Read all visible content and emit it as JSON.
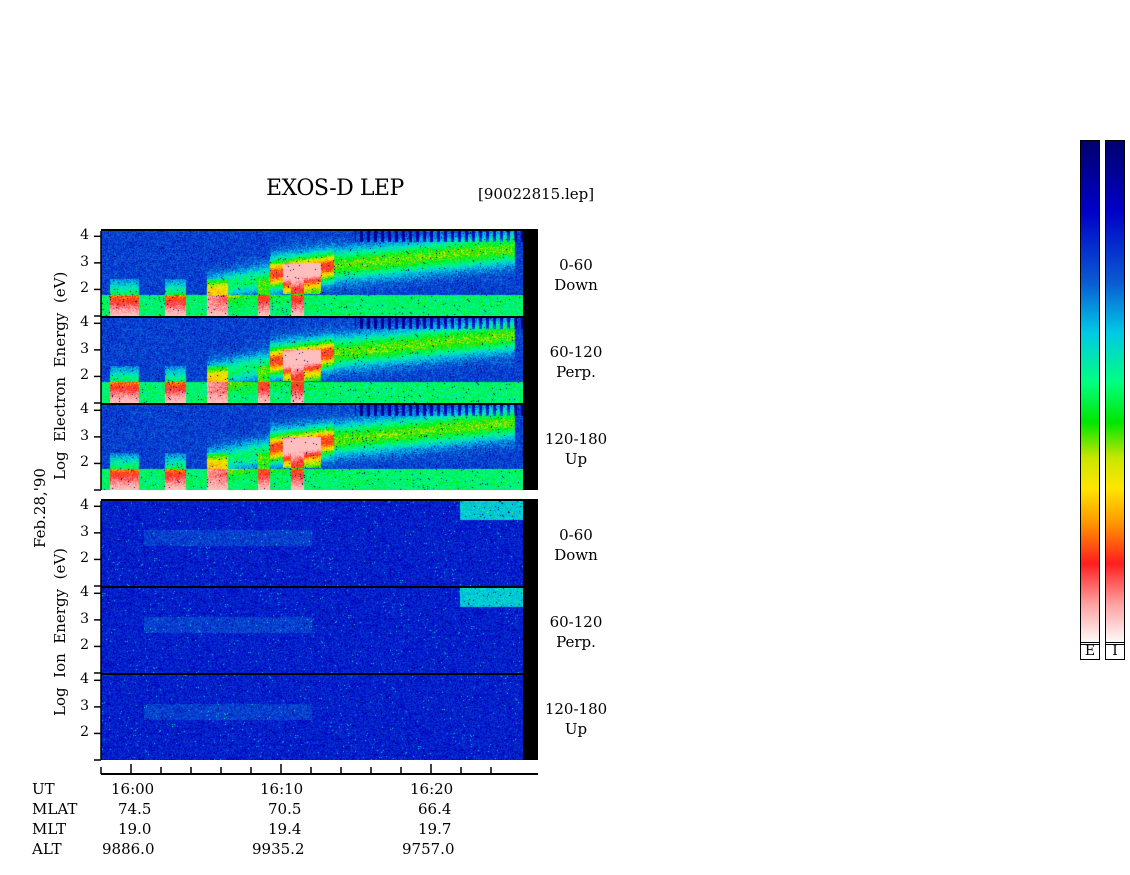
{
  "chart_data": {
    "type": "heatmap",
    "title": "EXOS-D LEP",
    "file_label": "[90022815.lep]",
    "date_label": "Feb.28,'90",
    "groups": [
      {
        "name": "electron",
        "ylabel_words": [
          "Log",
          "Electron",
          "Energy",
          "(eV)"
        ]
      },
      {
        "name": "ion",
        "ylabel_words": [
          "Log",
          "Ion",
          "Energy",
          "(eV)"
        ]
      }
    ],
    "panels": [
      {
        "group": "electron",
        "pitch_angle": "0-60",
        "direction": "Down"
      },
      {
        "group": "electron",
        "pitch_angle": "60-120",
        "direction": "Perp."
      },
      {
        "group": "electron",
        "pitch_angle": "120-180",
        "direction": "Up"
      },
      {
        "group": "ion",
        "pitch_angle": "0-60",
        "direction": "Down"
      },
      {
        "group": "ion",
        "pitch_angle": "60-120",
        "direction": "Perp."
      },
      {
        "group": "ion",
        "pitch_angle": "120-180",
        "direction": "Up"
      }
    ],
    "y_ticks": [
      "4",
      "3",
      "2"
    ],
    "ylim": [
      1,
      4.2
    ],
    "x_ticks": [
      "16:00",
      "16:10",
      "16:20"
    ],
    "ephemeris": {
      "row_labels": [
        "UT",
        "MLAT",
        "MLT",
        "ALT"
      ],
      "columns": [
        {
          "UT": "16:00",
          "MLAT": "74.5",
          "MLT": "19.0",
          "ALT": "9886.0"
        },
        {
          "UT": "16:10",
          "MLAT": "70.5",
          "MLT": "19.4",
          "ALT": "9935.2"
        },
        {
          "UT": "16:20",
          "MLAT": "66.4",
          "MLT": "19.7",
          "ALT": "9757.0"
        }
      ]
    },
    "colorbars": [
      {
        "label": "E",
        "colors": [
          "#00006e",
          "#0000c8",
          "#00c8e6",
          "#00e600",
          "#ffe600",
          "#ff1e1e",
          "#ffffff"
        ]
      },
      {
        "label": "I",
        "colors": [
          "#00006e",
          "#0000c8",
          "#00c8e6",
          "#00e600",
          "#ffe600",
          "#ff1e1e",
          "#ffffff"
        ]
      }
    ],
    "grid": false
  }
}
